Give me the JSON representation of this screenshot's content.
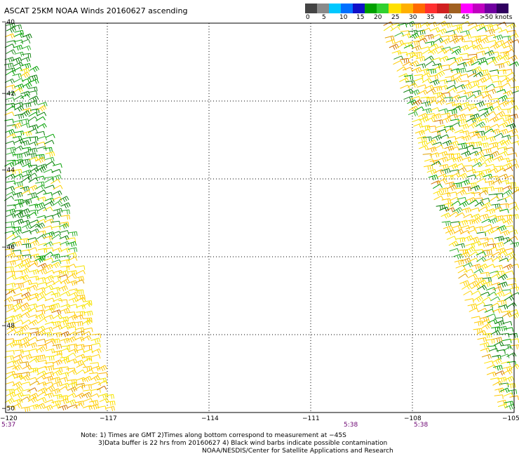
{
  "title": "ASCAT 25KM NOAA Winds 20160627 ascending",
  "colorbar": {
    "colors": [
      "#444444",
      "#8a8a8a",
      "#00c8ff",
      "#0070ff",
      "#1010c8",
      "#00a000",
      "#30d030",
      "#ffe000",
      "#ffb000",
      "#ff6a00",
      "#ff3030",
      "#d02020",
      "#a06020",
      "#ff00ff",
      "#c000c0",
      "#7000a0",
      "#300060"
    ],
    "labels": [
      "0",
      "5",
      "10",
      "15",
      "20",
      "25",
      "30",
      "35",
      "40",
      "45",
      ">50 knots"
    ]
  },
  "axes": {
    "x_ticks": [
      "−120",
      "−117",
      "−114",
      "−111",
      "−108",
      "−105"
    ],
    "y_ticks": [
      "−40",
      "−42",
      "−44",
      "−46",
      "−48",
      "−50"
    ]
  },
  "chart_data": {
    "type": "scatter",
    "xlim": [
      -120,
      -105
    ],
    "ylim": [
      -50,
      -40
    ],
    "grid": true,
    "swaths": [
      {
        "lon_top_left": -120,
        "lon_top_right": -119.5,
        "lon_bottom_left": -120,
        "lon_bottom_right": -116.8,
        "dominant_speed_north": "15-20",
        "dominant_speed_south": "20-30"
      },
      {
        "lon_top_left": -109.0,
        "lon_top_right": -105,
        "lon_bottom_left": -105.5,
        "lon_bottom_right": -105,
        "dominant_speed_north": "20-25",
        "dominant_speed_south": "15-25"
      }
    ]
  },
  "times": [
    "5:37",
    "5:38",
    "5:38"
  ],
  "notes": [
    "Note: 1) Times are GMT 2)Times along bottom correspond to measurement at −45S",
    "3)Data buffer is 22 hrs from 20160627 4) Black wind barbs indicate possible contamination",
    "NOAA/NESDIS/Center for Satellite Applications and Research"
  ]
}
